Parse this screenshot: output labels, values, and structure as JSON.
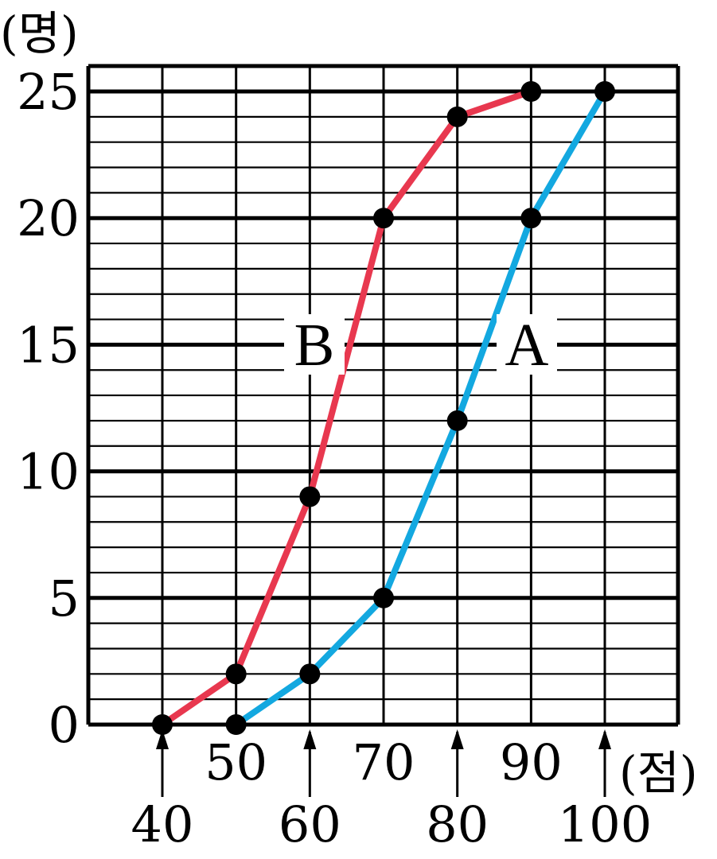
{
  "chart_data": {
    "type": "line",
    "title": "",
    "y_unit": "(명)",
    "x_unit": "(점)",
    "xlim": [
      40,
      100
    ],
    "ylim": [
      0,
      25
    ],
    "x_ticks": [
      40,
      50,
      60,
      70,
      80,
      90,
      100
    ],
    "y_ticks": [
      0,
      5,
      10,
      15,
      20,
      25
    ],
    "grid": true,
    "series": [
      {
        "name": "B",
        "color": "#e8384f",
        "x": [
          40,
          50,
          60,
          70,
          80,
          90
        ],
        "y": [
          0,
          2,
          9,
          20,
          24,
          25
        ]
      },
      {
        "name": "A",
        "color": "#13a8e0",
        "x": [
          50,
          60,
          70,
          80,
          90,
          100
        ],
        "y": [
          0,
          2,
          5,
          12,
          20,
          25
        ]
      }
    ]
  }
}
